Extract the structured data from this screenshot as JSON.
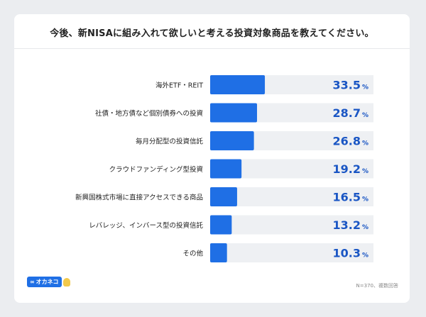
{
  "title": "今後、新NISAに組み入れて欲しいと考える投資対象商品を教えてください。",
  "footnote": "N=370、複数回答",
  "brand": {
    "name": "オカネコ",
    "prefix": "∞"
  },
  "colors": {
    "bar": "#1f6fe5",
    "track": "#eef0f3",
    "value": "#1a56c4",
    "label": "#222222"
  },
  "chart_data": {
    "type": "bar",
    "orientation": "horizontal",
    "unit": "%",
    "xlim": [
      0,
      100
    ],
    "categories": [
      "海外ETF・REIT",
      "社債・地方債など個別債券への投資",
      "毎月分配型の投資信託",
      "クラウドファンディング型投資",
      "新興国株式市場に直接アクセスできる商品",
      "レバレッジ、インバース型の投資信託",
      "その他"
    ],
    "values": [
      33.5,
      28.7,
      26.8,
      19.2,
      16.5,
      13.2,
      10.3
    ],
    "value_labels": [
      "33.5",
      "28.7",
      "26.8",
      "19.2",
      "16.5",
      "13.2",
      "10.3"
    ]
  }
}
